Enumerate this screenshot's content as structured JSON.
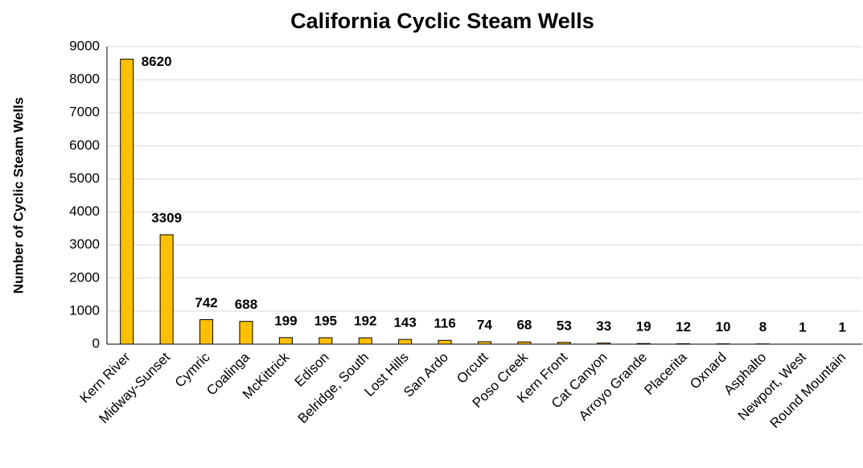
{
  "chart_data": {
    "type": "bar",
    "title": "California Cyclic Steam Wells",
    "y_label": "Number of Cyclic Steam Wells",
    "categories": [
      "Kern River",
      "Midway-Sunset",
      "Cymric",
      "Coalinga",
      "McKittrick",
      "Edison",
      "Belridge, South",
      "Lost Hills",
      "San Ardo",
      "Orcutt",
      "Poso Creek",
      "Kern Front",
      "Cat Canyon",
      "Arroyo Grande",
      "Placerita",
      "Oxnard",
      "Asphalto",
      "Newport, West",
      "Round Mountain"
    ],
    "values": [
      8620,
      3309,
      742,
      688,
      199,
      195,
      192,
      143,
      116,
      74,
      68,
      53,
      33,
      19,
      12,
      10,
      8,
      1,
      1
    ],
    "label_colors": [
      "#ff0000",
      "#ff0000",
      "#ff0000",
      "#ff0000",
      "#ff0000",
      "#ff0000",
      "#ff0000",
      "#ff0000",
      "#ff0000",
      "#ff0000",
      "#ff0000",
      "#ff0000",
      "#000000",
      "#ff0000",
      "#ff0000",
      "#000000",
      "#000000",
      "#000000",
      "#ff0000"
    ],
    "color": "#ffc000",
    "ylim": [
      0,
      9000
    ],
    "yticks": [
      0,
      1000,
      2000,
      3000,
      4000,
      5000,
      6000,
      7000,
      8000,
      9000
    ],
    "grid": true
  }
}
